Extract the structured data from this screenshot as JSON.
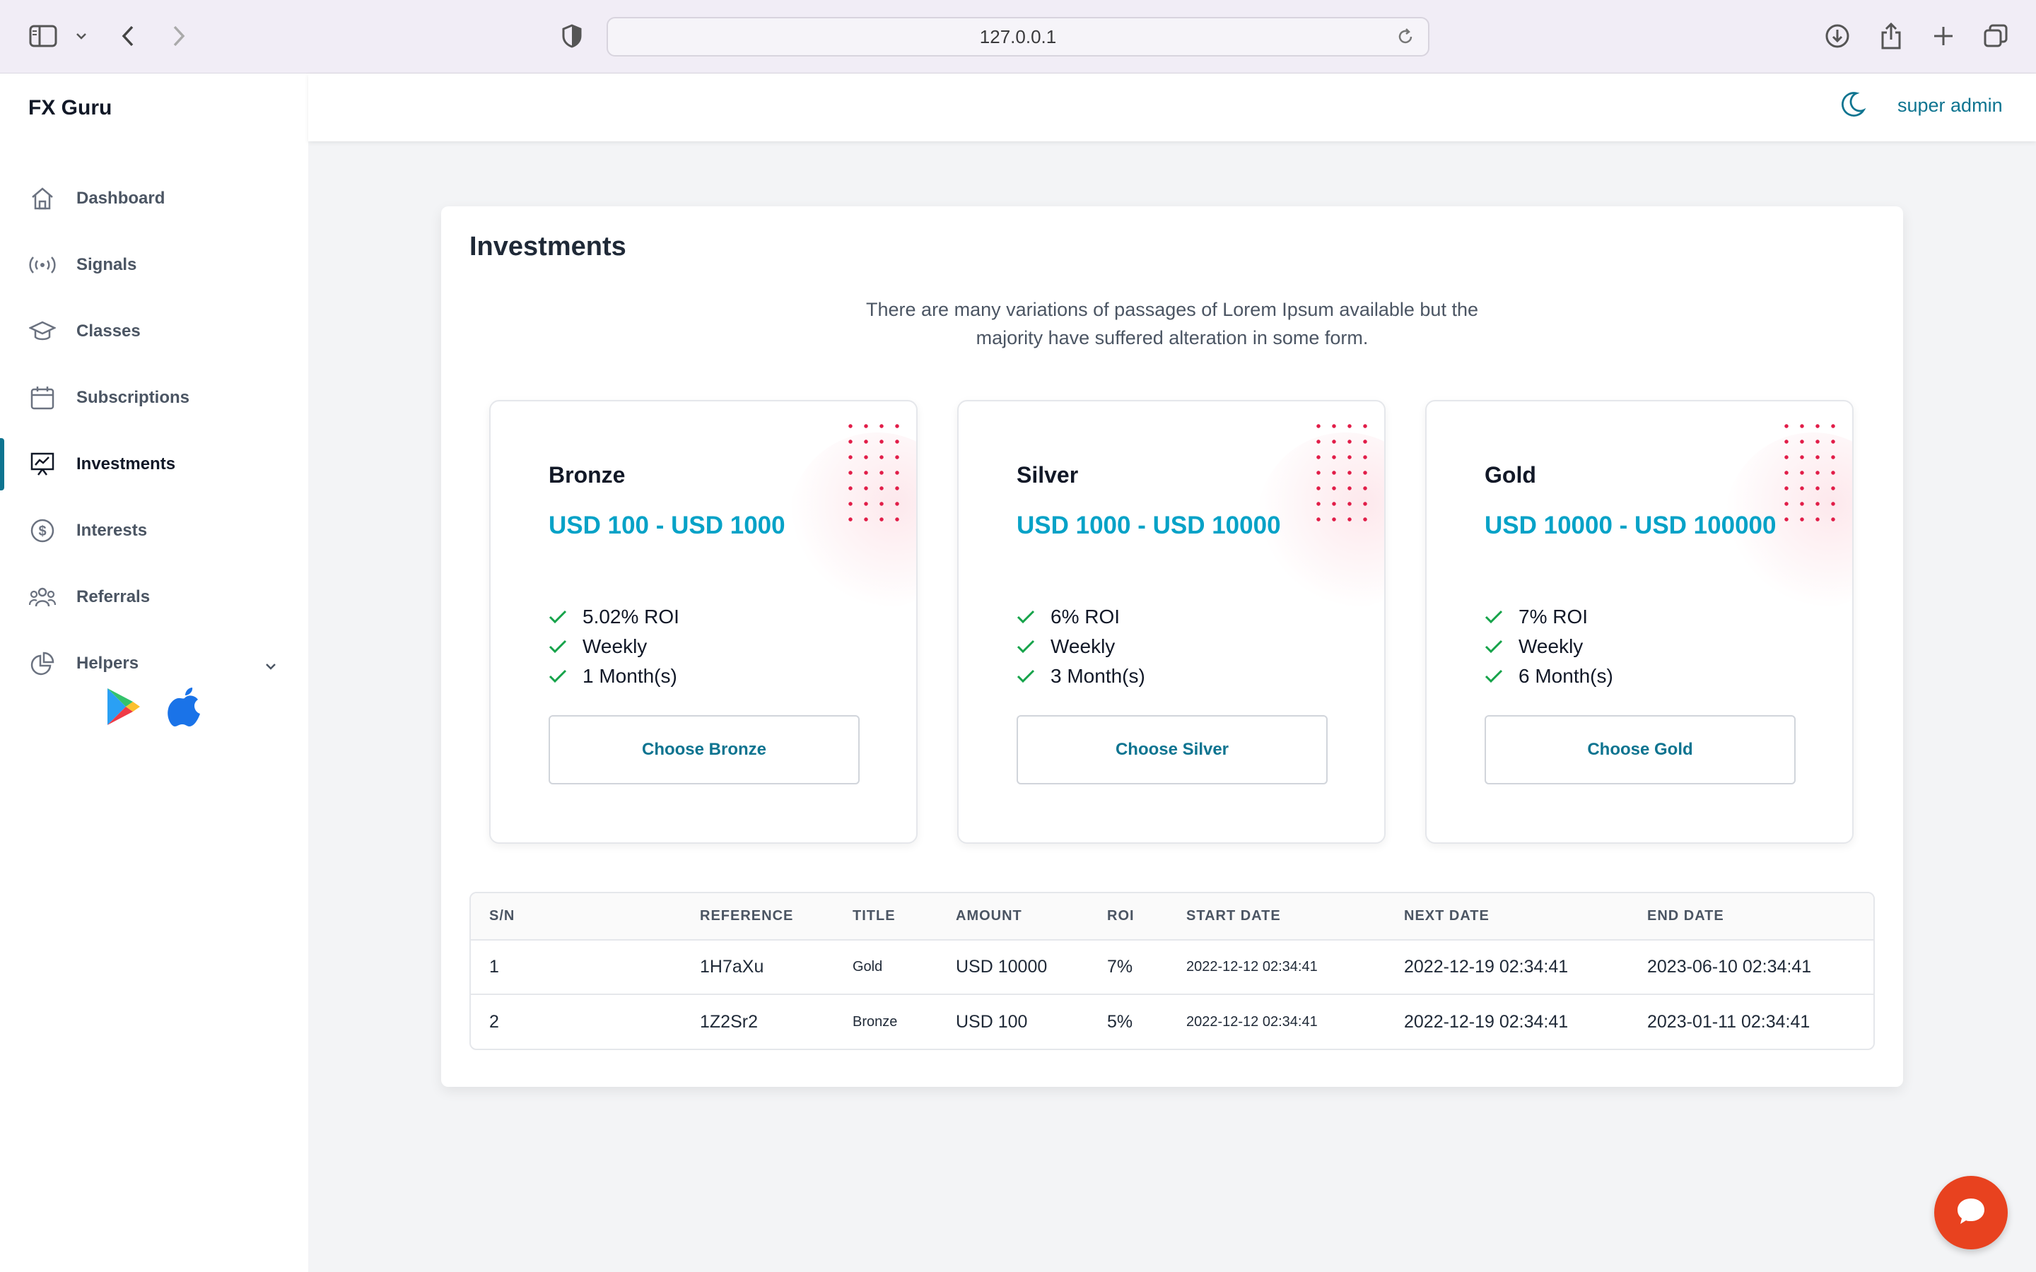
{
  "browser": {
    "url": "127.0.0.1"
  },
  "app": {
    "brand": "FX Guru",
    "user": "super admin"
  },
  "sidebar": {
    "items": [
      {
        "label": "Dashboard",
        "icon": "home-icon"
      },
      {
        "label": "Signals",
        "icon": "broadcast-icon"
      },
      {
        "label": "Classes",
        "icon": "graduation-cap-icon"
      },
      {
        "label": "Subscriptions",
        "icon": "calendar-icon"
      },
      {
        "label": "Investments",
        "icon": "presentation-chart-icon",
        "active": true
      },
      {
        "label": "Interests",
        "icon": "dollar-circle-icon"
      },
      {
        "label": "Referrals",
        "icon": "users-icon"
      },
      {
        "label": "Helpers",
        "icon": "pie-chart-icon"
      }
    ]
  },
  "main": {
    "title": "Investments",
    "description": "There are many variations of passages of Lorem Ipsum available but the majority have suffered alteration in some form.",
    "plans": [
      {
        "name": "Bronze",
        "range": "USD 100 - USD 1000",
        "features": [
          "5.02% ROI",
          "Weekly",
          "1 Month(s)"
        ],
        "button": "Choose Bronze"
      },
      {
        "name": "Silver",
        "range": "USD 1000 - USD 10000",
        "features": [
          "6% ROI",
          "Weekly",
          "3 Month(s)"
        ],
        "button": "Choose Silver"
      },
      {
        "name": "Gold",
        "range": "USD 10000 - USD 100000",
        "features": [
          "7% ROI",
          "Weekly",
          "6 Month(s)"
        ],
        "button": "Choose Gold"
      }
    ],
    "table": {
      "headers": [
        "S/N",
        "REFERENCE",
        "TITLE",
        "AMOUNT",
        "ROI",
        "START DATE",
        "NEXT DATE",
        "END DATE"
      ],
      "rows": [
        [
          "1",
          "1H7aXu",
          "Gold",
          "USD 10000",
          "7%",
          "2022-12-12 02:34:41",
          "2022-12-19 02:34:41",
          "2023-06-10 02:34:41"
        ],
        [
          "2",
          "1Z2Sr2",
          "Bronze",
          "USD 100",
          "5%",
          "2022-12-12 02:34:41",
          "2022-12-19 02:34:41",
          "2023-01-11 02:34:41"
        ]
      ]
    }
  },
  "colors": {
    "accent": "#0e7490",
    "plan_range": "#06a2c7",
    "check": "#16a34a",
    "chat": "#e8421f"
  }
}
